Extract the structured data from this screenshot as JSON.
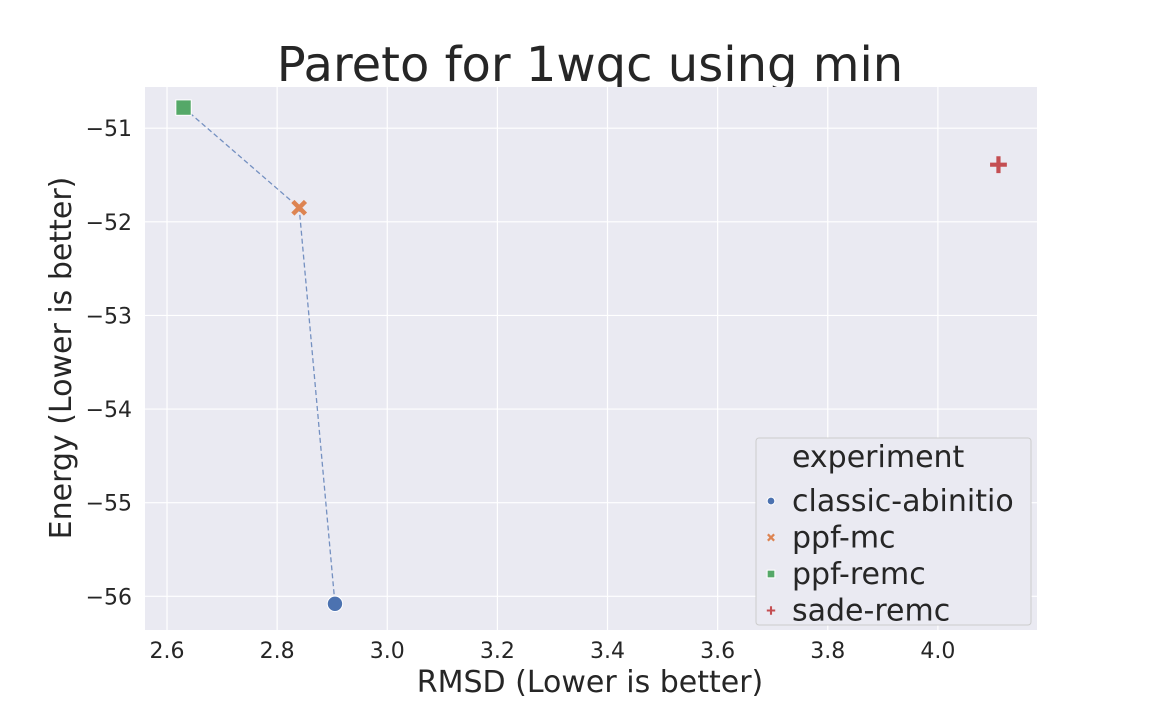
{
  "chart_data": {
    "type": "scatter",
    "title": "Pareto for 1wqc using min",
    "xlabel": "RMSD (Lower is better)",
    "ylabel": "Energy (Lower is better)",
    "xlim": [
      2.56,
      4.18
    ],
    "ylim": [
      -56.36,
      -50.56
    ],
    "xticks": [
      2.6,
      2.8,
      3.0,
      3.2,
      3.4,
      3.6,
      3.8,
      4.0
    ],
    "yticks": [
      -51,
      -52,
      -53,
      -54,
      -55,
      -56
    ],
    "xtick_labels": [
      "2.6",
      "2.8",
      "3.0",
      "3.2",
      "3.4",
      "3.6",
      "3.8",
      "4.0"
    ],
    "ytick_labels": [
      "−51",
      "−52",
      "−53",
      "−54",
      "−55",
      "−56"
    ],
    "grid": true,
    "legend": {
      "title": "experiment",
      "position": "bottom-right",
      "entries": [
        "classic-abinitio",
        "ppf-mc",
        "ppf-remc",
        "sade-remc"
      ]
    },
    "series": [
      {
        "name": "classic-abinitio",
        "marker": "circle",
        "color": "#4c72b0",
        "x": [
          2.905
        ],
        "y": [
          -56.08
        ]
      },
      {
        "name": "ppf-mc",
        "marker": "x",
        "color": "#dd8452",
        "x": [
          2.84
        ],
        "y": [
          -51.85
        ]
      },
      {
        "name": "ppf-remc",
        "marker": "square",
        "color": "#55a868",
        "x": [
          2.63
        ],
        "y": [
          -50.78
        ]
      },
      {
        "name": "sade-remc",
        "marker": "plus",
        "color": "#c44e52",
        "x": [
          4.11
        ],
        "y": [
          -51.39
        ]
      }
    ],
    "pareto_front": {
      "color": "#4c72b0",
      "x": [
        2.63,
        2.84,
        2.905
      ],
      "y": [
        -50.78,
        -51.85,
        -56.08
      ]
    }
  }
}
